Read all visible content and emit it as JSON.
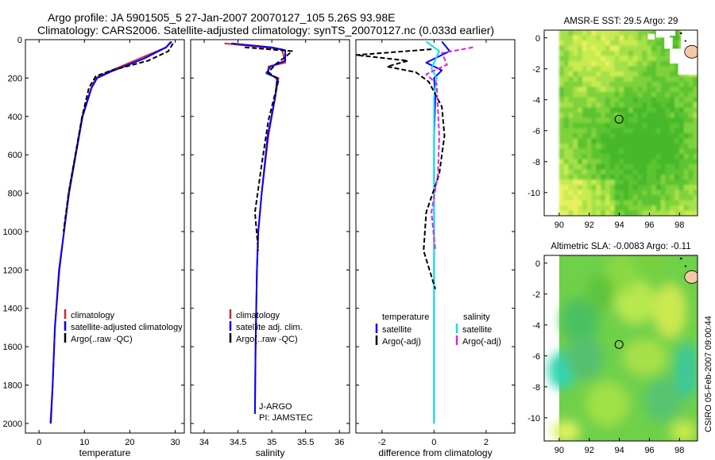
{
  "header": {
    "line1": "Argo profile: JA 5901505_5 27-Jan-2007 20070127_105 5.26S 93.98E",
    "line2": "Climatology: CARS2006. Satellite-adjusted climatology: synTS_20070127.nc (0.033d earlier)"
  },
  "side_note": "CSIRO 05-Feb-2007 09:00:44",
  "chart_data": [
    {
      "type": "line",
      "id": "temperature",
      "xlabel": "temperature",
      "ylabel": "",
      "xlim": [
        -3,
        32
      ],
      "ylim": [
        2050,
        0
      ],
      "xticks": [
        0,
        10,
        20,
        30
      ],
      "yticks": [
        0,
        200,
        400,
        600,
        800,
        1000,
        1200,
        1400,
        1600,
        1800,
        2000
      ],
      "legend": [
        {
          "label": "climatology",
          "color": "#d62728"
        },
        {
          "label": "satellite-adjusted climatology",
          "color": "#0000ff"
        },
        {
          "label": "Argo(..raw -QC)",
          "color": "#000000"
        }
      ],
      "series": [
        {
          "color": "#d62728",
          "dash": "solid",
          "x": [
            29,
            28,
            22,
            15,
            12.5,
            11.5,
            9.5,
            8,
            6.5,
            5.5,
            4.5,
            3.5,
            3,
            2.5
          ],
          "y": [
            10,
            40,
            100,
            170,
            200,
            250,
            400,
            600,
            800,
            1000,
            1200,
            1500,
            1800,
            2000
          ]
        },
        {
          "color": "#0000ff",
          "dash": "solid",
          "x": [
            29.2,
            28,
            23,
            16,
            12.8,
            11.6,
            9.6,
            8.1,
            6.6,
            5.5,
            4.4,
            3.5,
            3,
            2.6
          ],
          "y": [
            10,
            40,
            100,
            165,
            200,
            250,
            400,
            600,
            800,
            1000,
            1200,
            1500,
            1800,
            2000
          ]
        },
        {
          "color": "#000000",
          "dash": "dashed",
          "x": [
            29.5,
            28.5,
            24,
            16,
            12.5,
            11,
            9.5,
            8,
            6.5,
            5.4
          ],
          "y": [
            20,
            60,
            110,
            160,
            190,
            250,
            400,
            600,
            800,
            1000
          ]
        }
      ]
    },
    {
      "type": "line",
      "id": "salinity",
      "xlabel": "salinity",
      "xlim": [
        33.8,
        36.15
      ],
      "ylim": [
        2050,
        0
      ],
      "xticks": [
        34,
        34.5,
        35,
        35.5,
        36
      ],
      "yticks": [],
      "legend": [
        {
          "label": "climatology",
          "color": "#d62728"
        },
        {
          "label": "satellite adj. clim.",
          "color": "#0000ff"
        },
        {
          "label": "Argo(..raw -QC)",
          "color": "#000000"
        }
      ],
      "notes": [
        "J-ARGO",
        "PI: JAMSTEC"
      ],
      "series": [
        {
          "color": "#d62728",
          "dash": "solid",
          "x": [
            34.3,
            34.9,
            35.15,
            35.2,
            34.95,
            34.95,
            35.1,
            35.05,
            34.95,
            34.85,
            34.8,
            34.78,
            34.76,
            34.75
          ],
          "y": [
            20,
            40,
            50,
            120,
            140,
            180,
            200,
            300,
            500,
            800,
            1000,
            1200,
            1600,
            1950
          ]
        },
        {
          "color": "#0000ff",
          "dash": "solid",
          "x": [
            34.4,
            35,
            35.2,
            35.2,
            34.98,
            34.92,
            35.08,
            35.05,
            34.94,
            34.85,
            34.8,
            34.78,
            34.76,
            34.75
          ],
          "y": [
            20,
            40,
            55,
            110,
            140,
            175,
            200,
            300,
            500,
            800,
            1000,
            1200,
            1600,
            1950
          ]
        },
        {
          "color": "#000000",
          "dash": "dashed",
          "x": [
            34.6,
            35.3,
            35.2,
            35.05,
            34.95,
            35.1,
            35.05,
            34.95,
            34.85,
            34.75,
            34.8
          ],
          "y": [
            40,
            60,
            90,
            130,
            170,
            210,
            280,
            420,
            650,
            900,
            1100
          ]
        }
      ]
    },
    {
      "type": "line",
      "id": "difference",
      "xlabel": "difference from climatology",
      "xlim": [
        -3,
        3.1
      ],
      "ylim": [
        2050,
        0
      ],
      "xticks": [
        -2,
        0,
        2
      ],
      "yticks": [],
      "legend_left_title": "temperature",
      "legend_right_title": "salinity",
      "legend": [
        {
          "label": "satellite",
          "color": "#0000ff",
          "group": "temperature"
        },
        {
          "label": "Argo(-adj)",
          "color": "#000000",
          "group": "temperature"
        },
        {
          "label": "satellite",
          "color": "#00e5ee",
          "group": "salinity"
        },
        {
          "label": "Argo(-adj)",
          "color": "#e020e0",
          "group": "salinity"
        }
      ],
      "series": [
        {
          "color": "#0000ff",
          "dash": "solid",
          "x": [
            0.3,
            0.6,
            -0.3,
            0.3,
            0,
            0.05,
            0,
            0
          ],
          "y": [
            10,
            60,
            120,
            160,
            200,
            300,
            500,
            2000
          ]
        },
        {
          "color": "#00e5ee",
          "dash": "solid",
          "x": [
            -0.3,
            0.2,
            -0.1,
            0.1,
            0,
            0,
            0
          ],
          "y": [
            10,
            60,
            150,
            200,
            300,
            1000,
            2000
          ]
        },
        {
          "color": "#000000",
          "dash": "dashed",
          "x": [
            -0.1,
            -3,
            -1,
            -1.8,
            -0.7,
            -0.2,
            0.3,
            0.4,
            0.2,
            -0.3,
            -0.4,
            0.05
          ],
          "y": [
            50,
            80,
            110,
            140,
            170,
            220,
            350,
            500,
            700,
            900,
            1100,
            1300
          ]
        },
        {
          "color": "#e020e0",
          "dash": "dashed",
          "x": [
            1.5,
            0.3,
            0.5,
            -0.3,
            0.1,
            0.2,
            0.15,
            -0.1,
            0.05
          ],
          "y": [
            40,
            70,
            130,
            180,
            230,
            500,
            700,
            900,
            1100
          ]
        }
      ]
    },
    {
      "type": "heatmap",
      "id": "sst-map",
      "title": "AMSR-E SST: 29.5 Argo: 29",
      "xlim": [
        89,
        99.2
      ],
      "ylim": [
        -11.5,
        0.5
      ],
      "xticks": [
        90,
        92,
        94,
        96,
        98
      ],
      "yticks": [
        0,
        -2,
        -4,
        -6,
        -8,
        -10
      ],
      "marker": {
        "lon": 93.98,
        "lat": -5.26
      }
    },
    {
      "type": "heatmap",
      "id": "sla-map",
      "title": "Altimetric SLA: -0.0083 Argo: -0.11",
      "xlim": [
        89,
        99.2
      ],
      "ylim": [
        -11.5,
        0.5
      ],
      "xticks": [
        90,
        92,
        94,
        96,
        98
      ],
      "yticks": [
        0,
        -2,
        -4,
        -6,
        -8,
        -10
      ],
      "marker": {
        "lon": 93.98,
        "lat": -5.26
      }
    }
  ]
}
